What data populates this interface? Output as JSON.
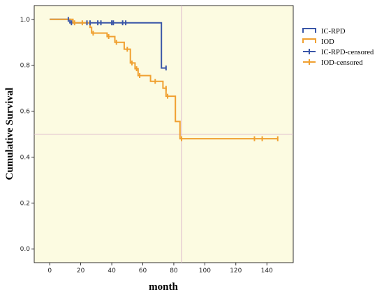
{
  "chart_data": {
    "type": "line",
    "xlabel": "month",
    "ylabel": "Cumulative Survival",
    "xlim": [
      -10,
      157
    ],
    "ylim": [
      -0.06,
      1.06
    ],
    "xticks": [
      "0",
      "20",
      "40",
      "60",
      "80",
      "100",
      "120",
      "140"
    ],
    "yticks": [
      "0.0",
      "0.2",
      "0.4",
      "0.6",
      "0.8",
      "1.0"
    ],
    "background": "#fcfbe1",
    "reference_lines": {
      "x": 85,
      "y": 0.5,
      "color": "#dcb8cc"
    },
    "legend_position": "right",
    "series": [
      {
        "name": "IC-RPD",
        "color": "#3a56a8",
        "steps": [
          [
            0,
            1.0
          ],
          [
            13,
            1.0
          ],
          [
            13,
            0.985
          ],
          [
            72,
            0.985
          ],
          [
            72,
            0.788
          ],
          [
            75,
            0.788
          ]
        ]
      },
      {
        "name": "IOD",
        "color": "#f0a030",
        "steps": [
          [
            0,
            1.0
          ],
          [
            15,
            1.0
          ],
          [
            15,
            0.985
          ],
          [
            26,
            0.985
          ],
          [
            26,
            0.965
          ],
          [
            27,
            0.965
          ],
          [
            27,
            0.94
          ],
          [
            37,
            0.94
          ],
          [
            37,
            0.925
          ],
          [
            42,
            0.925
          ],
          [
            42,
            0.9
          ],
          [
            48,
            0.9
          ],
          [
            48,
            0.87
          ],
          [
            52,
            0.87
          ],
          [
            52,
            0.81
          ],
          [
            55,
            0.81
          ],
          [
            55,
            0.785
          ],
          [
            57,
            0.785
          ],
          [
            57,
            0.755
          ],
          [
            65,
            0.755
          ],
          [
            65,
            0.73
          ],
          [
            73,
            0.73
          ],
          [
            73,
            0.7
          ],
          [
            75,
            0.7
          ],
          [
            75,
            0.665
          ],
          [
            81,
            0.665
          ],
          [
            81,
            0.555
          ],
          [
            84,
            0.555
          ],
          [
            84,
            0.48
          ],
          [
            147,
            0.48
          ]
        ]
      }
    ],
    "censored": [
      {
        "name": "IC-RPD-censored",
        "color": "#3a56a8",
        "points": [
          [
            12,
            1.0
          ],
          [
            14,
            0.985
          ],
          [
            24,
            0.985
          ],
          [
            26,
            0.985
          ],
          [
            31,
            0.985
          ],
          [
            33,
            0.985
          ],
          [
            40,
            0.985
          ],
          [
            41,
            0.985
          ],
          [
            47,
            0.985
          ],
          [
            49,
            0.985
          ],
          [
            75,
            0.788
          ]
        ]
      },
      {
        "name": "IOD-censored",
        "color": "#f0a030",
        "points": [
          [
            16,
            0.985
          ],
          [
            21,
            0.985
          ],
          [
            28,
            0.94
          ],
          [
            38,
            0.925
          ],
          [
            43,
            0.9
          ],
          [
            50,
            0.87
          ],
          [
            53,
            0.81
          ],
          [
            56,
            0.785
          ],
          [
            58,
            0.755
          ],
          [
            68,
            0.73
          ],
          [
            75,
            0.7
          ],
          [
            76,
            0.665
          ],
          [
            85,
            0.48
          ],
          [
            132,
            0.48
          ],
          [
            137,
            0.48
          ],
          [
            147,
            0.48
          ]
        ]
      }
    ]
  }
}
